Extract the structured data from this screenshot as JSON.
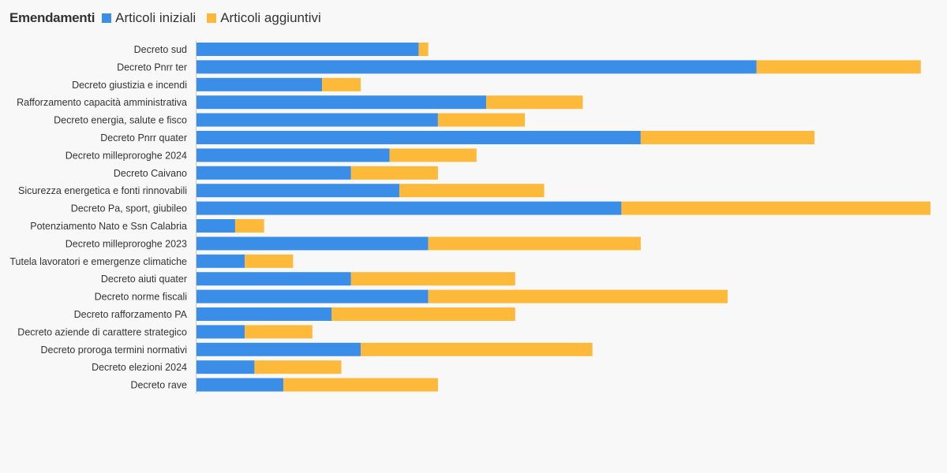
{
  "colors": {
    "articoli_iniziali": "#3b8ee8",
    "articoli_aggiuntivi": "#fdba3a",
    "axis": "#cccccc"
  },
  "chart_data": {
    "type": "bar",
    "orientation": "horizontal",
    "stacked": true,
    "legend_title": "Emendamenti",
    "legend_position": "top-left",
    "grid": false,
    "categories": [
      "Decreto sud",
      "Decreto Pnrr ter",
      "Decreto giustizia e incendi",
      "Rafforzamento capacità amministrativa",
      "Decreto energia, salute e fisco",
      "Decreto Pnrr quater",
      "Decreto milleproroghe 2024",
      "Decreto Caivano",
      "Sicurezza energetica e fonti rinnovabili",
      "Decreto Pa, sport, giubileo",
      "Potenziamento Nato e Ssn Calabria",
      "Decreto milleproroghe 2023",
      "Tutela lavoratori e emergenze climatiche",
      "Decreto aiuti quater",
      "Decreto norme fiscali",
      "Decreto rafforzamento PA",
      "Decreto aziende di carattere strategico",
      "Decreto proroga termini normativi",
      "Decreto elezioni 2024",
      "Decreto rave"
    ],
    "series": [
      {
        "name": "Articoli iniziali",
        "values": [
          23,
          58,
          13,
          30,
          25,
          46,
          20,
          16,
          21,
          44,
          4,
          24,
          5,
          16,
          24,
          14,
          5,
          17,
          6,
          9
        ]
      },
      {
        "name": "Articoli aggiuntivi",
        "values": [
          1,
          17,
          4,
          10,
          9,
          18,
          9,
          9,
          15,
          32,
          3,
          22,
          5,
          17,
          31,
          19,
          7,
          24,
          9,
          16
        ]
      }
    ],
    "xlim": [
      0,
      76
    ]
  }
}
